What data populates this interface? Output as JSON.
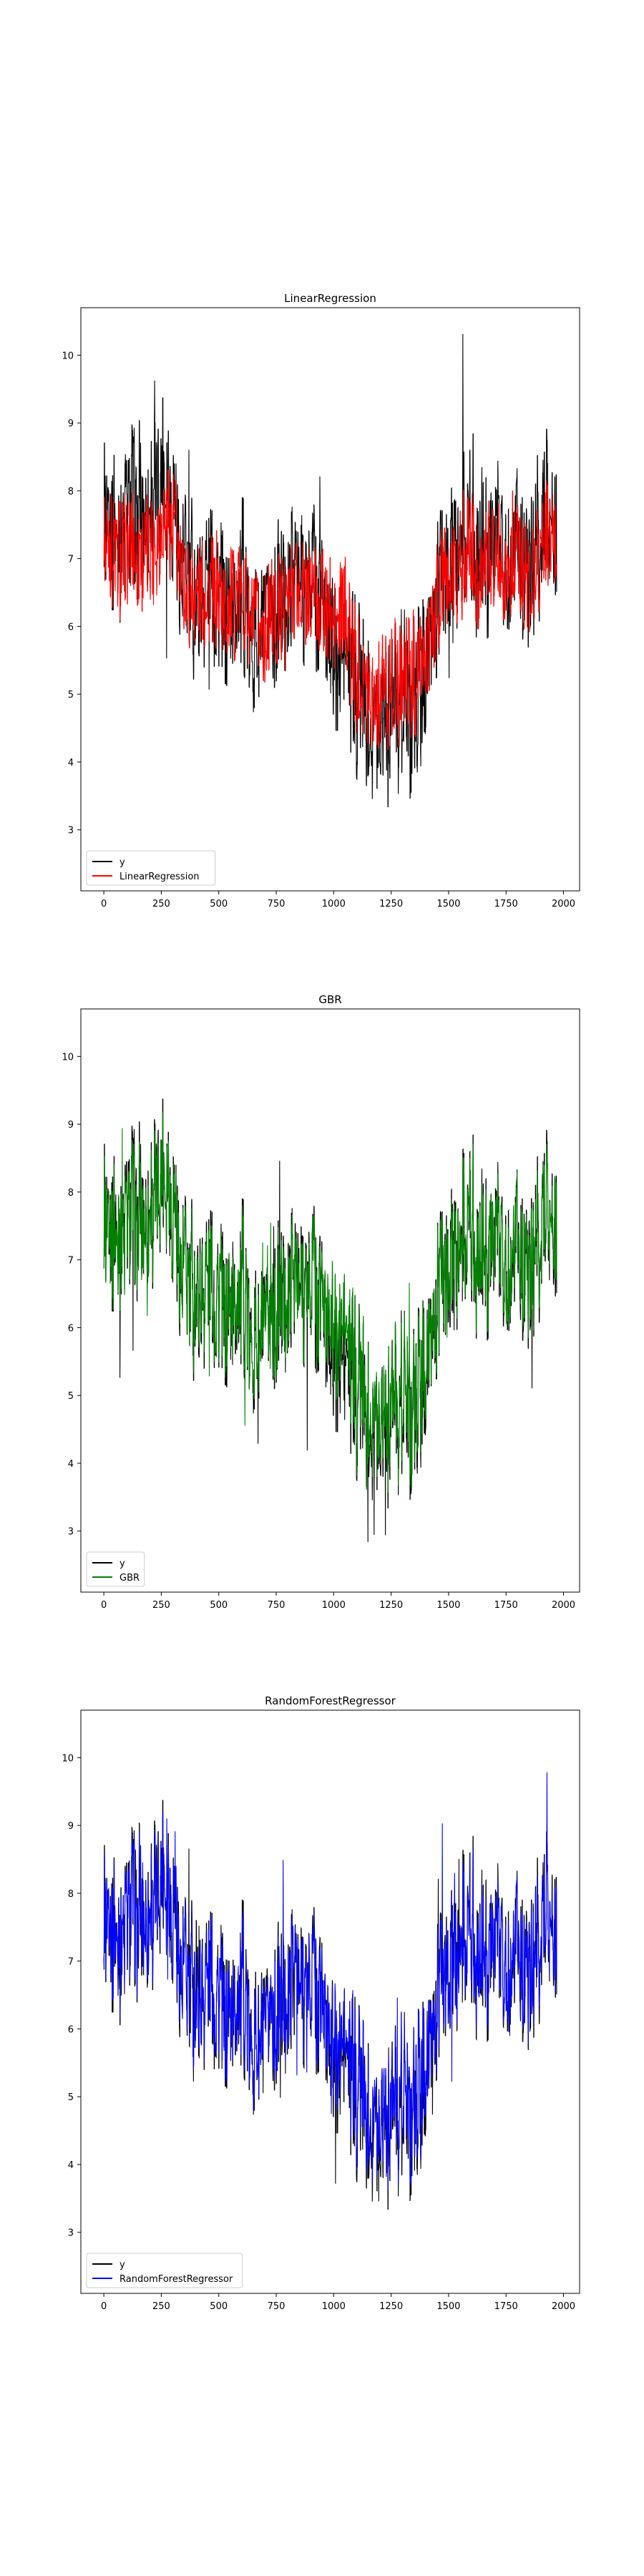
{
  "chart_data": [
    {
      "type": "line",
      "title": "LinearRegression",
      "xlabel": "",
      "ylabel": "",
      "xlim": [
        -100,
        2070
      ],
      "ylim": [
        2.1,
        10.7
      ],
      "x_ticks": [
        0,
        250,
        500,
        750,
        1000,
        1250,
        1500,
        1750,
        2000
      ],
      "y_ticks": [
        3,
        4,
        5,
        6,
        7,
        8,
        9,
        10
      ],
      "legend_position": "lower-left",
      "series": [
        {
          "name": "y",
          "color": "#000000",
          "x_range": [
            0,
            1970
          ],
          "anchors": [
            [
              0,
              7.8
            ],
            [
              60,
              7.3
            ],
            [
              120,
              7.9
            ],
            [
              180,
              7.6
            ],
            [
              250,
              8.3
            ],
            [
              300,
              7.8
            ],
            [
              350,
              6.8
            ],
            [
              400,
              6.5
            ],
            [
              450,
              6.9
            ],
            [
              500,
              6.6
            ],
            [
              550,
              6.2
            ],
            [
              600,
              6.6
            ],
            [
              650,
              5.8
            ],
            [
              700,
              5.7
            ],
            [
              750,
              6.3
            ],
            [
              800,
              6.4
            ],
            [
              850,
              6.9
            ],
            [
              900,
              6.7
            ],
            [
              950,
              6.5
            ],
            [
              1000,
              5.6
            ],
            [
              1050,
              5.5
            ],
            [
              1100,
              5.1
            ],
            [
              1150,
              4.9
            ],
            [
              1200,
              4.8
            ],
            [
              1250,
              4.7
            ],
            [
              1300,
              4.8
            ],
            [
              1350,
              4.9
            ],
            [
              1400,
              5.3
            ],
            [
              1450,
              6.4
            ],
            [
              1500,
              7.0
            ],
            [
              1550,
              7.2
            ],
            [
              1600,
              7.4
            ],
            [
              1650,
              7.1
            ],
            [
              1700,
              7.3
            ],
            [
              1750,
              7.1
            ],
            [
              1800,
              7.4
            ],
            [
              1850,
              6.6
            ],
            [
              1900,
              7.4
            ],
            [
              1930,
              7.7
            ],
            [
              1970,
              6.8
            ]
          ]
        },
        {
          "name": "LinearRegression",
          "color": "#ff0000",
          "x_range": [
            0,
            1970
          ],
          "anchors": [
            [
              0,
              7.3
            ],
            [
              60,
              7.0
            ],
            [
              120,
              7.2
            ],
            [
              180,
              7.1
            ],
            [
              250,
              7.5
            ],
            [
              300,
              7.5
            ],
            [
              350,
              6.6
            ],
            [
              400,
              6.5
            ],
            [
              450,
              6.6
            ],
            [
              500,
              6.5
            ],
            [
              550,
              6.3
            ],
            [
              600,
              6.5
            ],
            [
              650,
              6.0
            ],
            [
              700,
              5.9
            ],
            [
              750,
              6.2
            ],
            [
              800,
              6.3
            ],
            [
              850,
              6.6
            ],
            [
              900,
              6.5
            ],
            [
              950,
              6.4
            ],
            [
              1000,
              6.0
            ],
            [
              1050,
              6.2
            ],
            [
              1100,
              5.3
            ],
            [
              1150,
              5.2
            ],
            [
              1200,
              5.1
            ],
            [
              1250,
              5.1
            ],
            [
              1300,
              5.2
            ],
            [
              1350,
              5.3
            ],
            [
              1400,
              5.5
            ],
            [
              1450,
              6.3
            ],
            [
              1500,
              6.8
            ],
            [
              1550,
              7.0
            ],
            [
              1600,
              7.0
            ],
            [
              1650,
              6.9
            ],
            [
              1700,
              7.1
            ],
            [
              1750,
              6.9
            ],
            [
              1800,
              7.1
            ],
            [
              1850,
              6.6
            ],
            [
              1900,
              7.1
            ],
            [
              1930,
              7.2
            ],
            [
              1970,
              7.0
            ]
          ]
        }
      ]
    },
    {
      "type": "line",
      "title": "GBR",
      "xlabel": "",
      "ylabel": "",
      "xlim": [
        -100,
        2070
      ],
      "ylim": [
        2.1,
        10.7
      ],
      "x_ticks": [
        0,
        250,
        500,
        750,
        1000,
        1250,
        1500,
        1750,
        2000
      ],
      "y_ticks": [
        3,
        4,
        5,
        6,
        7,
        8,
        9,
        10
      ],
      "legend_position": "lower-left",
      "series": [
        {
          "name": "y",
          "color": "#000000",
          "x_range": [
            0,
            1970
          ],
          "anchors": [
            [
              0,
              7.8
            ],
            [
              60,
              7.3
            ],
            [
              120,
              7.9
            ],
            [
              180,
              7.6
            ],
            [
              250,
              8.3
            ],
            [
              300,
              7.8
            ],
            [
              350,
              6.8
            ],
            [
              400,
              6.5
            ],
            [
              450,
              6.9
            ],
            [
              500,
              6.6
            ],
            [
              550,
              6.2
            ],
            [
              600,
              6.6
            ],
            [
              650,
              5.8
            ],
            [
              700,
              5.7
            ],
            [
              750,
              6.3
            ],
            [
              800,
              6.4
            ],
            [
              850,
              6.9
            ],
            [
              900,
              6.7
            ],
            [
              950,
              6.5
            ],
            [
              1000,
              5.6
            ],
            [
              1050,
              5.5
            ],
            [
              1100,
              5.1
            ],
            [
              1150,
              4.9
            ],
            [
              1200,
              4.8
            ],
            [
              1250,
              4.7
            ],
            [
              1300,
              4.8
            ],
            [
              1350,
              4.9
            ],
            [
              1400,
              5.3
            ],
            [
              1450,
              6.4
            ],
            [
              1500,
              7.0
            ],
            [
              1550,
              7.2
            ],
            [
              1600,
              7.4
            ],
            [
              1650,
              7.1
            ],
            [
              1700,
              7.3
            ],
            [
              1750,
              7.1
            ],
            [
              1800,
              7.4
            ],
            [
              1850,
              6.6
            ],
            [
              1900,
              7.4
            ],
            [
              1930,
              7.7
            ],
            [
              1970,
              6.8
            ]
          ]
        },
        {
          "name": "GBR",
          "color": "#008000",
          "x_range": [
            0,
            1970
          ],
          "anchors": [
            [
              0,
              7.7
            ],
            [
              60,
              7.3
            ],
            [
              120,
              7.8
            ],
            [
              180,
              7.5
            ],
            [
              250,
              8.3
            ],
            [
              300,
              7.8
            ],
            [
              350,
              6.8
            ],
            [
              400,
              6.5
            ],
            [
              450,
              6.9
            ],
            [
              500,
              6.6
            ],
            [
              550,
              6.3
            ],
            [
              600,
              6.6
            ],
            [
              650,
              5.8
            ],
            [
              700,
              5.7
            ],
            [
              750,
              6.3
            ],
            [
              800,
              6.4
            ],
            [
              850,
              6.8
            ],
            [
              900,
              6.7
            ],
            [
              950,
              6.5
            ],
            [
              1000,
              6.0
            ],
            [
              1050,
              5.9
            ],
            [
              1100,
              5.2
            ],
            [
              1150,
              5.0
            ],
            [
              1200,
              4.9
            ],
            [
              1250,
              4.8
            ],
            [
              1300,
              4.9
            ],
            [
              1350,
              5.0
            ],
            [
              1400,
              5.4
            ],
            [
              1450,
              6.4
            ],
            [
              1500,
              7.0
            ],
            [
              1550,
              7.2
            ],
            [
              1600,
              7.4
            ],
            [
              1650,
              7.1
            ],
            [
              1700,
              7.3
            ],
            [
              1750,
              7.1
            ],
            [
              1800,
              7.4
            ],
            [
              1850,
              6.6
            ],
            [
              1900,
              7.4
            ],
            [
              1930,
              7.7
            ],
            [
              1970,
              6.9
            ]
          ]
        }
      ]
    },
    {
      "type": "line",
      "title": "RandomForestRegressor",
      "xlabel": "",
      "ylabel": "",
      "xlim": [
        -100,
        2070
      ],
      "ylim": [
        2.1,
        10.7
      ],
      "x_ticks": [
        0,
        250,
        500,
        750,
        1000,
        1250,
        1500,
        1750,
        2000
      ],
      "y_ticks": [
        3,
        4,
        5,
        6,
        7,
        8,
        9,
        10
      ],
      "legend_position": "lower-left",
      "series": [
        {
          "name": "y",
          "color": "#000000",
          "x_range": [
            0,
            1970
          ],
          "anchors": [
            [
              0,
              7.8
            ],
            [
              60,
              7.3
            ],
            [
              120,
              7.9
            ],
            [
              180,
              7.6
            ],
            [
              250,
              8.3
            ],
            [
              300,
              7.8
            ],
            [
              350,
              6.8
            ],
            [
              400,
              6.5
            ],
            [
              450,
              6.9
            ],
            [
              500,
              6.6
            ],
            [
              550,
              6.2
            ],
            [
              600,
              6.6
            ],
            [
              650,
              5.8
            ],
            [
              700,
              5.7
            ],
            [
              750,
              6.3
            ],
            [
              800,
              6.4
            ],
            [
              850,
              6.9
            ],
            [
              900,
              6.7
            ],
            [
              950,
              6.5
            ],
            [
              1000,
              5.6
            ],
            [
              1050,
              5.5
            ],
            [
              1100,
              5.1
            ],
            [
              1150,
              4.9
            ],
            [
              1200,
              4.8
            ],
            [
              1250,
              4.7
            ],
            [
              1300,
              4.8
            ],
            [
              1350,
              4.9
            ],
            [
              1400,
              5.3
            ],
            [
              1450,
              6.4
            ],
            [
              1500,
              7.0
            ],
            [
              1550,
              7.2
            ],
            [
              1600,
              7.4
            ],
            [
              1650,
              7.1
            ],
            [
              1700,
              7.3
            ],
            [
              1750,
              7.1
            ],
            [
              1800,
              7.4
            ],
            [
              1850,
              6.6
            ],
            [
              1900,
              7.4
            ],
            [
              1930,
              7.7
            ],
            [
              1970,
              6.8
            ]
          ]
        },
        {
          "name": "RandomForestRegressor",
          "color": "#0000ff",
          "x_range": [
            0,
            1970
          ],
          "anchors": [
            [
              0,
              7.8
            ],
            [
              60,
              7.3
            ],
            [
              120,
              7.9
            ],
            [
              180,
              7.6
            ],
            [
              250,
              8.3
            ],
            [
              300,
              7.8
            ],
            [
              350,
              6.8
            ],
            [
              400,
              6.5
            ],
            [
              450,
              6.9
            ],
            [
              500,
              6.6
            ],
            [
              550,
              6.2
            ],
            [
              600,
              6.6
            ],
            [
              650,
              5.8
            ],
            [
              700,
              5.7
            ],
            [
              750,
              6.3
            ],
            [
              800,
              6.4
            ],
            [
              850,
              6.9
            ],
            [
              900,
              6.7
            ],
            [
              950,
              6.5
            ],
            [
              1000,
              5.8
            ],
            [
              1050,
              5.7
            ],
            [
              1100,
              5.2
            ],
            [
              1150,
              5.0
            ],
            [
              1200,
              4.9
            ],
            [
              1250,
              4.8
            ],
            [
              1300,
              4.9
            ],
            [
              1350,
              5.0
            ],
            [
              1400,
              5.4
            ],
            [
              1450,
              6.4
            ],
            [
              1500,
              7.0
            ],
            [
              1550,
              7.2
            ],
            [
              1600,
              7.4
            ],
            [
              1650,
              7.1
            ],
            [
              1700,
              7.3
            ],
            [
              1750,
              7.1
            ],
            [
              1800,
              7.4
            ],
            [
              1850,
              6.6
            ],
            [
              1900,
              7.4
            ],
            [
              1930,
              7.7
            ],
            [
              1970,
              6.8
            ]
          ]
        }
      ]
    }
  ]
}
